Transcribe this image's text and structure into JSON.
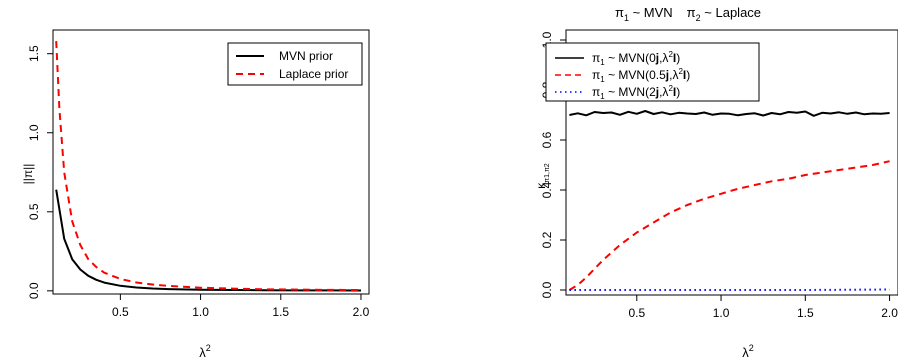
{
  "chart_data": [
    {
      "type": "line",
      "title": "",
      "xlabel": "λ",
      "xlabel_sup": "2",
      "ylabel": "||π||",
      "xlim": [
        0.08,
        2.05
      ],
      "ylim": [
        -0.02,
        1.65
      ],
      "xticks": [
        0.5,
        1.0,
        1.5,
        2.0
      ],
      "xtick_labels": [
        "0.5",
        "1.0",
        "1.5",
        "2.0"
      ],
      "yticks": [
        0.0,
        0.5,
        1.0,
        1.5
      ],
      "ytick_labels": [
        "0.0",
        "0.5",
        "1.0",
        "1.5"
      ],
      "legend_position": "top-right",
      "series": [
        {
          "name": "MVN prior",
          "color": "#000000",
          "dash": "solid",
          "x": [
            0.1,
            0.15,
            0.2,
            0.25,
            0.3,
            0.35,
            0.4,
            0.5,
            0.6,
            0.7,
            0.8,
            1.0,
            1.2,
            1.4,
            1.6,
            1.8,
            2.0
          ],
          "y": [
            0.64,
            0.33,
            0.2,
            0.135,
            0.095,
            0.07,
            0.052,
            0.032,
            0.021,
            0.015,
            0.011,
            0.007,
            0.005,
            0.004,
            0.003,
            0.0025,
            0.002
          ]
        },
        {
          "name": "Laplace prior",
          "color": "#ff0000",
          "dash": "dashed",
          "x": [
            0.1,
            0.12,
            0.15,
            0.2,
            0.25,
            0.3,
            0.35,
            0.4,
            0.5,
            0.6,
            0.7,
            0.8,
            1.0,
            1.2,
            1.4,
            1.6,
            1.8,
            2.0
          ],
          "y": [
            1.58,
            1.15,
            0.75,
            0.44,
            0.29,
            0.2,
            0.15,
            0.115,
            0.075,
            0.053,
            0.04,
            0.031,
            0.02,
            0.014,
            0.01,
            0.008,
            0.006,
            0.005
          ]
        }
      ]
    },
    {
      "type": "line",
      "title_parts": {
        "p1": "π",
        "s1": "1",
        "t1": " ~ MVN",
        "p2": "π",
        "s2": "2",
        "t2": " ~ Laplace"
      },
      "xlabel": "λ",
      "xlabel_sup": "2",
      "ylabel": "κ",
      "ylabel_sub": "π1,π2",
      "xlim": [
        0.08,
        2.05
      ],
      "ylim": [
        -0.02,
        1.04
      ],
      "xticks": [
        0.5,
        1.0,
        1.5,
        2.0
      ],
      "xtick_labels": [
        "0.5",
        "1.0",
        "1.5",
        "2.0"
      ],
      "yticks": [
        0.0,
        0.2,
        0.4,
        0.6,
        0.8,
        1.0
      ],
      "ytick_labels": [
        "0.0",
        "0.2",
        "0.4",
        "0.6",
        "0.8",
        "1.0"
      ],
      "legend_position": "top-left",
      "legend": [
        {
          "pi": "π",
          "sub": "1",
          "pre": " ~ MVN(0",
          "bold1": "j",
          "mid": ",λ",
          "sup": "2",
          "bold2": "I",
          "post": ")"
        },
        {
          "pi": "π",
          "sub": "1",
          "pre": " ~ MVN(0.5",
          "bold1": "j",
          "mid": ",λ",
          "sup": "2",
          "bold2": "I",
          "post": ")"
        },
        {
          "pi": "π",
          "sub": "1",
          "pre": " ~ MVN(2",
          "bold1": "j",
          "mid": ",λ",
          "sup": "2",
          "bold2": "I",
          "post": ")"
        }
      ],
      "series": [
        {
          "color": "#000000",
          "dash": "solid",
          "x": [
            0.1,
            0.15,
            0.2,
            0.25,
            0.3,
            0.35,
            0.4,
            0.45,
            0.5,
            0.55,
            0.6,
            0.65,
            0.7,
            0.75,
            0.8,
            0.85,
            0.9,
            0.95,
            1.0,
            1.05,
            1.1,
            1.15,
            1.2,
            1.25,
            1.3,
            1.35,
            1.4,
            1.45,
            1.5,
            1.55,
            1.6,
            1.65,
            1.7,
            1.75,
            1.8,
            1.85,
            1.9,
            1.95,
            2.0
          ],
          "y": [
            0.7,
            0.707,
            0.699,
            0.712,
            0.708,
            0.71,
            0.701,
            0.713,
            0.705,
            0.716,
            0.704,
            0.711,
            0.703,
            0.709,
            0.706,
            0.704,
            0.71,
            0.701,
            0.706,
            0.705,
            0.699,
            0.704,
            0.707,
            0.698,
            0.708,
            0.703,
            0.712,
            0.709,
            0.714,
            0.697,
            0.709,
            0.706,
            0.711,
            0.705,
            0.71,
            0.703,
            0.706,
            0.705,
            0.708
          ]
        },
        {
          "color": "#ff0000",
          "dash": "dashed",
          "x": [
            0.1,
            0.15,
            0.2,
            0.3,
            0.4,
            0.5,
            0.6,
            0.7,
            0.8,
            0.9,
            1.0,
            1.1,
            1.2,
            1.3,
            1.4,
            1.5,
            1.6,
            1.7,
            1.8,
            1.9,
            2.0
          ],
          "y": [
            0.0,
            0.02,
            0.05,
            0.12,
            0.18,
            0.23,
            0.27,
            0.31,
            0.34,
            0.365,
            0.385,
            0.405,
            0.42,
            0.435,
            0.445,
            0.46,
            0.47,
            0.48,
            0.49,
            0.5,
            0.515
          ]
        },
        {
          "color": "#0000ff",
          "dash": "dotted",
          "x": [
            0.1,
            0.5,
            1.0,
            1.5,
            2.0
          ],
          "y": [
            0.0,
            0.0,
            0.0,
            0.0,
            0.002
          ]
        }
      ]
    }
  ]
}
